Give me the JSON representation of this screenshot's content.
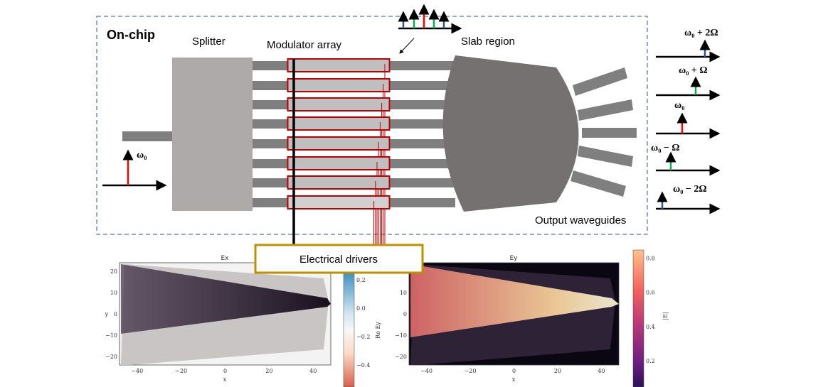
{
  "labels": {
    "onchip": "On-chip",
    "splitter": "Splitter",
    "modulator": "Modulator array",
    "slab": "Slab region",
    "output": "Output waveguides",
    "drivers": "Electrical drivers",
    "input_freq": "ω₀"
  },
  "outputs": [
    {
      "label": "ω₀ + 2Ω",
      "color": "#2f5597"
    },
    {
      "label": "ω₀ + Ω",
      "color": "#00b050"
    },
    {
      "label": "ω₀",
      "color": "#ff0000"
    },
    {
      "label": "ω₀ − Ω",
      "color": "#00b050"
    },
    {
      "label": "ω₀ − 2Ω",
      "color": "#2f5597"
    }
  ],
  "colors": {
    "frame": "#2f5597",
    "modulator_border": "#c00000",
    "driver_box": "#bf9000",
    "waveguide": "#7f7f7f",
    "splitter": "#aeaaaa",
    "slab": "#767171"
  },
  "plots": [
    {
      "title": "Ex",
      "xlabel": "x",
      "ylabel": "y",
      "xticks": [
        "−40",
        "−20",
        "0",
        "20",
        "40"
      ],
      "yticks": [
        "20",
        "10",
        "0",
        "−10",
        "−20"
      ],
      "colorbar_label": "Re Ey",
      "colorbar_ticks": [
        "0.2",
        "0.0",
        "−0.2",
        "−0.4"
      ],
      "colormap": "RdBu"
    },
    {
      "title": "Ey",
      "xlabel": "x",
      "ylabel": "y",
      "xticks": [
        "−40",
        "−20",
        "0",
        "20",
        "40"
      ],
      "yticks": [
        "10",
        "0",
        "−10",
        "−20"
      ],
      "colorbar_label": "|E|",
      "colorbar_ticks": [
        "0.8",
        "0.6",
        "0.4",
        "0.2"
      ],
      "colormap": "magma"
    }
  ]
}
